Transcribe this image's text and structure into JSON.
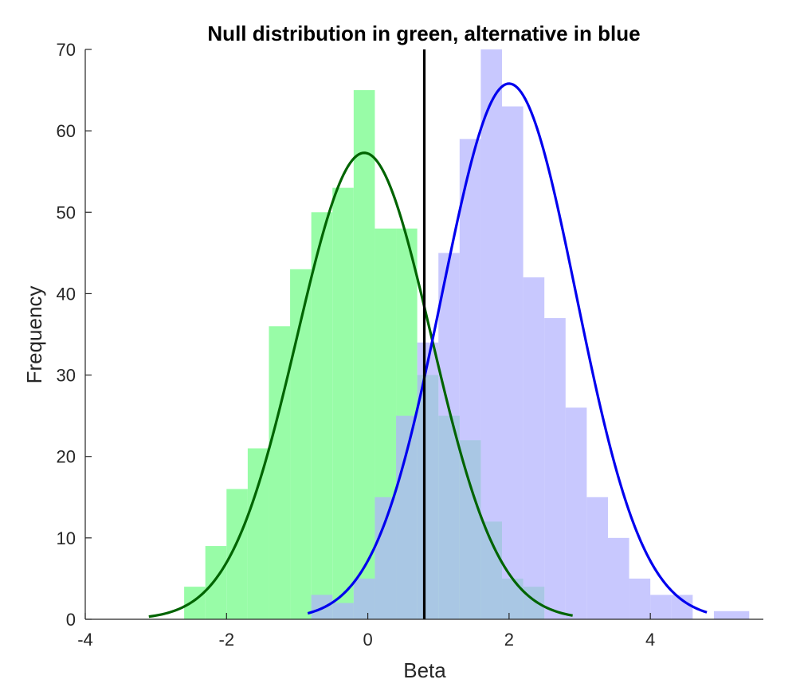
{
  "chart_data": {
    "type": "bar",
    "title": "Null distribution in green, alternative in blue",
    "xlabel": "Beta",
    "ylabel": "Frequency",
    "xlim": [
      -4,
      5.6
    ],
    "ylim": [
      0,
      70
    ],
    "xticks": [
      -4,
      -2,
      0,
      2,
      4
    ],
    "yticks": [
      0,
      10,
      20,
      30,
      40,
      50,
      60,
      70
    ],
    "grid": false,
    "vline": 0.8,
    "series": [
      {
        "color": "#98fca7",
        "curve_color": "#006400",
        "edges": [
          -2.6,
          -2.3,
          -2.0,
          -1.7,
          -1.4,
          -1.1,
          -0.8,
          -0.5,
          -0.2,
          0.1,
          0.4,
          0.7,
          1.0,
          1.3,
          1.6,
          1.9,
          2.2,
          2.5
        ],
        "counts": [
          4,
          9,
          16,
          21,
          36,
          43,
          50,
          53,
          65,
          48,
          48,
          30,
          25,
          22,
          12,
          5,
          4
        ],
        "fit": {
          "mean": -0.05,
          "sd": 0.95,
          "peak": 57.3,
          "range": [
            -3.1,
            2.9
          ]
        }
      },
      {
        "color": "#b0b1fd",
        "curve_color": "#0000ee",
        "edges": [
          -0.8,
          -0.5,
          -0.2,
          0.1,
          0.4,
          0.7,
          1.0,
          1.3,
          1.6,
          1.9,
          2.2,
          2.5,
          2.8,
          3.1,
          3.4,
          3.7,
          4.0,
          4.3,
          4.6,
          4.9,
          5.2,
          5.4
        ],
        "counts": [
          3,
          2,
          5,
          15,
          25,
          34,
          45,
          59,
          70,
          63,
          42,
          37,
          26,
          15,
          10,
          5,
          3,
          3,
          0,
          1,
          1
        ],
        "fit": {
          "mean": 2.0,
          "sd": 0.95,
          "peak": 65.8,
          "range": [
            -0.85,
            4.8
          ]
        }
      }
    ]
  }
}
